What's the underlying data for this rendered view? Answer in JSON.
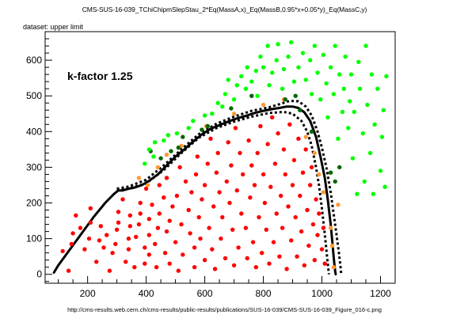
{
  "figure": {
    "title": "CMS-SUS-16-039_TChiChipmSlepStau_2*Eq(MassA,x)_Eq(MassB,0.95*x+0.05*y)_Eq(MassC,y)",
    "dataset_label": "dataset: upper limit",
    "annotation": "k-factor 1.25",
    "footer": "http://cms-results.web.cern.ch/cms-results/public-results/publications/SUS-16-039/CMS-SUS-16-039_Figure_016-c.png"
  },
  "chart_data": {
    "type": "scatter",
    "title": "CMS-SUS-16-039_TChiChipmSlepStau_2*Eq(MassA,x)_Eq(MassB,0.95*x+0.05*y)_Eq(MassC,y)",
    "xlabel": "",
    "ylabel": "",
    "xlim": [
      55,
      1250
    ],
    "ylim": [
      -25,
      680
    ],
    "xticks": [
      200,
      400,
      600,
      800,
      1000,
      1200
    ],
    "yticks": [
      0,
      100,
      200,
      300,
      400,
      500,
      600
    ],
    "grid": false,
    "colors": {
      "excluded": "#ff0000",
      "borderline": "#ff9933",
      "near_allowed": "#006600",
      "allowed": "#00ff00",
      "curve": "#000000"
    },
    "series": [
      {
        "name": "excluded",
        "points": [
          [
            135,
            10
          ],
          [
            115,
            65
          ],
          [
            145,
            85
          ],
          [
            150,
            115
          ],
          [
            175,
            130
          ],
          [
            160,
            165
          ],
          [
            190,
            70
          ],
          [
            205,
            100
          ],
          [
            210,
            145
          ],
          [
            210,
            185
          ],
          [
            230,
            35
          ],
          [
            240,
            95
          ],
          [
            245,
            135
          ],
          [
            255,
            75
          ],
          [
            265,
            110
          ],
          [
            275,
            10
          ],
          [
            285,
            60
          ],
          [
            295,
            85
          ],
          [
            300,
            125
          ],
          [
            305,
            145
          ],
          [
            305,
            175
          ],
          [
            320,
            210
          ],
          [
            330,
            35
          ],
          [
            340,
            70
          ],
          [
            340,
            100
          ],
          [
            345,
            135
          ],
          [
            345,
            165
          ],
          [
            360,
            20
          ],
          [
            365,
            105
          ],
          [
            375,
            140
          ],
          [
            380,
            170
          ],
          [
            380,
            200
          ],
          [
            395,
            30
          ],
          [
            395,
            75
          ],
          [
            400,
            240
          ],
          [
            410,
            55
          ],
          [
            410,
            110
          ],
          [
            410,
            155
          ],
          [
            420,
            195
          ],
          [
            430,
            85
          ],
          [
            435,
            20
          ],
          [
            440,
            130
          ],
          [
            445,
            170
          ],
          [
            445,
            250
          ],
          [
            460,
            215
          ],
          [
            465,
            60
          ],
          [
            470,
            120
          ],
          [
            470,
            270
          ],
          [
            480,
            30
          ],
          [
            480,
            150
          ],
          [
            490,
            190
          ],
          [
            500,
            90
          ],
          [
            505,
            220
          ],
          [
            510,
            10
          ],
          [
            515,
            300
          ],
          [
            520,
            140
          ],
          [
            525,
            55
          ],
          [
            535,
            260
          ],
          [
            545,
            180
          ],
          [
            550,
            115
          ],
          [
            555,
            230
          ],
          [
            565,
            20
          ],
          [
            565,
            75
          ],
          [
            570,
            280
          ],
          [
            575,
            330
          ],
          [
            580,
            160
          ],
          [
            585,
            100
          ],
          [
            590,
            210
          ],
          [
            600,
            40
          ],
          [
            600,
            250
          ],
          [
            610,
            310
          ],
          [
            615,
            130
          ],
          [
            620,
            380
          ],
          [
            625,
            70
          ],
          [
            630,
            190
          ],
          [
            635,
            15
          ],
          [
            640,
            285
          ],
          [
            645,
            340
          ],
          [
            650,
            230
          ],
          [
            655,
            100
          ],
          [
            660,
            160
          ],
          [
            670,
            45
          ],
          [
            675,
            260
          ],
          [
            680,
            370
          ],
          [
            685,
            200
          ],
          [
            690,
            305
          ],
          [
            695,
            125
          ],
          [
            700,
            25
          ],
          [
            705,
            410
          ],
          [
            710,
            235
          ],
          [
            715,
            75
          ],
          [
            720,
            340
          ],
          [
            725,
            170
          ],
          [
            730,
            280
          ],
          [
            740,
            130
          ],
          [
            745,
            45
          ],
          [
            750,
            375
          ],
          [
            755,
            215
          ],
          [
            760,
            305
          ],
          [
            765,
            90
          ],
          [
            770,
            250
          ],
          [
            775,
            20
          ],
          [
            780,
            340
          ],
          [
            785,
            160
          ],
          [
            790,
            415
          ],
          [
            795,
            60
          ],
          [
            800,
            280
          ],
          [
            805,
            200
          ],
          [
            810,
            125
          ],
          [
            815,
            365
          ],
          [
            820,
            30
          ],
          [
            825,
            245
          ],
          [
            830,
            440
          ],
          [
            835,
            90
          ],
          [
            840,
            310
          ],
          [
            845,
            170
          ],
          [
            850,
            395
          ],
          [
            855,
            50
          ],
          [
            860,
            220
          ],
          [
            865,
            130
          ],
          [
            870,
            350
          ],
          [
            875,
            280
          ],
          [
            880,
            15
          ],
          [
            885,
            190
          ],
          [
            890,
            420
          ],
          [
            895,
            95
          ],
          [
            900,
            250
          ],
          [
            905,
            320
          ],
          [
            910,
            160
          ],
          [
            915,
            50
          ],
          [
            920,
            380
          ],
          [
            925,
            220
          ],
          [
            930,
            120
          ],
          [
            935,
            285
          ],
          [
            940,
            25
          ],
          [
            945,
            350
          ],
          [
            950,
            180
          ],
          [
            955,
            80
          ],
          [
            960,
            250
          ],
          [
            965,
            300
          ],
          [
            970,
            140
          ],
          [
            975,
            40
          ],
          [
            980,
            210
          ],
          [
            985,
            110
          ],
          [
            990,
            170
          ],
          [
            1000,
            70
          ],
          [
            1005,
            130
          ],
          [
            1010,
            30
          ]
        ]
      },
      {
        "name": "borderline",
        "points": [
          [
            375,
            270
          ],
          [
            405,
            250
          ],
          [
            440,
            300
          ],
          [
            470,
            335
          ],
          [
            520,
            360
          ],
          [
            605,
            415
          ],
          [
            700,
            450
          ],
          [
            800,
            475
          ],
          [
            870,
            490
          ],
          [
            945,
            385
          ],
          [
            975,
            340
          ],
          [
            990,
            280
          ],
          [
            1005,
            230
          ],
          [
            1030,
            130
          ],
          [
            1035,
            80
          ],
          [
            1040,
            20
          ],
          [
            1055,
            195
          ]
        ]
      },
      {
        "name": "near_allowed",
        "points": [
          [
            415,
            345
          ],
          [
            450,
            325
          ],
          [
            485,
            345
          ],
          [
            510,
            355
          ],
          [
            525,
            385
          ],
          [
            590,
            405
          ],
          [
            610,
            415
          ],
          [
            690,
            465
          ],
          [
            760,
            500
          ],
          [
            875,
            490
          ],
          [
            910,
            500
          ],
          [
            925,
            460
          ],
          [
            965,
            400
          ],
          [
            1030,
            285
          ],
          [
            1045,
            260
          ],
          [
            1060,
            300
          ]
        ]
      },
      {
        "name": "allowed",
        "points": [
          [
            395,
            310
          ],
          [
            410,
            350
          ],
          [
            425,
            330
          ],
          [
            430,
            370
          ],
          [
            460,
            375
          ],
          [
            475,
            390
          ],
          [
            505,
            395
          ],
          [
            545,
            410
          ],
          [
            560,
            430
          ],
          [
            600,
            445
          ],
          [
            625,
            450
          ],
          [
            645,
            480
          ],
          [
            660,
            470
          ],
          [
            670,
            505
          ],
          [
            680,
            545
          ],
          [
            700,
            490
          ],
          [
            710,
            530
          ],
          [
            725,
            555
          ],
          [
            740,
            520
          ],
          [
            745,
            580
          ],
          [
            760,
            540
          ],
          [
            775,
            570
          ],
          [
            780,
            500
          ],
          [
            790,
            610
          ],
          [
            800,
            580
          ],
          [
            815,
            640
          ],
          [
            820,
            530
          ],
          [
            830,
            565
          ],
          [
            845,
            600
          ],
          [
            850,
            645
          ],
          [
            865,
            520
          ],
          [
            870,
            575
          ],
          [
            885,
            610
          ],
          [
            895,
            650
          ],
          [
            905,
            540
          ],
          [
            920,
            580
          ],
          [
            935,
            620
          ],
          [
            945,
            545
          ],
          [
            960,
            600
          ],
          [
            965,
            505
          ],
          [
            975,
            640
          ],
          [
            985,
            565
          ],
          [
            995,
            490
          ],
          [
            1005,
            615
          ],
          [
            1015,
            535
          ],
          [
            1020,
            440
          ],
          [
            1030,
            580
          ],
          [
            1040,
            505
          ],
          [
            1045,
            640
          ],
          [
            1055,
            380
          ],
          [
            1060,
            560
          ],
          [
            1070,
            455
          ],
          [
            1075,
            520
          ],
          [
            1080,
            610
          ],
          [
            1090,
            410
          ],
          [
            1095,
            485
          ],
          [
            1100,
            560
          ],
          [
            1105,
            325
          ],
          [
            1110,
            455
          ],
          [
            1120,
            225
          ],
          [
            1125,
            595
          ],
          [
            1130,
            520
          ],
          [
            1140,
            395
          ],
          [
            1145,
            260
          ],
          [
            1150,
            640
          ],
          [
            1155,
            475
          ],
          [
            1165,
            340
          ],
          [
            1170,
            560
          ],
          [
            1175,
            225
          ],
          [
            1180,
            420
          ],
          [
            1190,
            520
          ],
          [
            1200,
            290
          ],
          [
            1205,
            385
          ],
          [
            1210,
            460
          ],
          [
            1215,
            245
          ],
          [
            1220,
            555
          ]
        ]
      },
      {
        "name": "curve",
        "style": "solid",
        "x": [
          85,
          100,
          140,
          180,
          220,
          260,
          290,
          305,
          320,
          340,
          360,
          385,
          410,
          440,
          470,
          500,
          530,
          560,
          590,
          620,
          650,
          680,
          710,
          740,
          770,
          800,
          830,
          860,
          880,
          900,
          920,
          940,
          960,
          980,
          995,
          1010,
          1020,
          1030,
          1035,
          1040,
          1043,
          1045,
          1047
        ],
        "y": [
          5,
          25,
          70,
          115,
          160,
          200,
          225,
          235,
          235,
          240,
          243,
          250,
          262,
          280,
          305,
          330,
          350,
          372,
          392,
          408,
          418,
          428,
          437,
          444,
          452,
          458,
          463,
          467,
          470,
          470,
          466,
          454,
          430,
          385,
          330,
          270,
          210,
          140,
          95,
          50,
          25,
          10,
          0
        ]
      },
      {
        "name": "curve_lower",
        "style": "dashed",
        "x": [
          300,
          340,
          400,
          460,
          520,
          580,
          640,
          700,
          760,
          820,
          870,
          900,
          930,
          950,
          965,
          980,
          990,
          1000,
          1008,
          1015,
          1020,
          1024
        ],
        "y": [
          235,
          240,
          255,
          292,
          340,
          383,
          410,
          428,
          442,
          452,
          455,
          450,
          430,
          400,
          360,
          300,
          250,
          185,
          125,
          70,
          30,
          0
        ]
      },
      {
        "name": "curve_upper",
        "style": "dashed",
        "x": [
          300,
          340,
          400,
          460,
          520,
          580,
          640,
          700,
          760,
          820,
          860,
          890,
          920,
          945,
          965,
          985,
          1000,
          1015,
          1030,
          1040,
          1050,
          1058,
          1063,
          1066
        ],
        "y": [
          240,
          246,
          265,
          305,
          350,
          393,
          422,
          442,
          458,
          468,
          478,
          486,
          485,
          470,
          445,
          400,
          355,
          300,
          230,
          170,
          110,
          60,
          25,
          0
        ]
      }
    ]
  }
}
